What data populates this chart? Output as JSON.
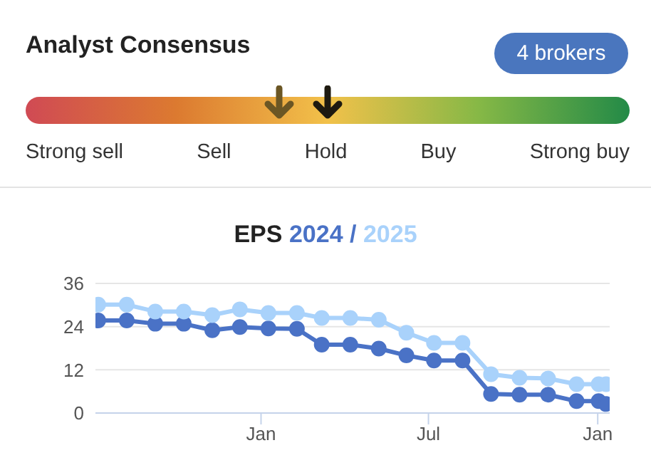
{
  "chart_data": [
    {
      "type": "other",
      "title": "Analyst Consensus",
      "categories": [
        "Strong sell",
        "Sell",
        "Hold",
        "Buy",
        "Strong buy"
      ],
      "colors": [
        "#d04a54",
        "#dc7a30",
        "#f2c14a",
        "#86b846",
        "#238a47"
      ],
      "annotations": [
        "4 brokers"
      ]
    },
    {
      "type": "line",
      "title": "EPS",
      "annotations": [
        "/"
      ],
      "x": [
        "2023-07-08",
        "2023-08-08",
        "2023-09-08",
        "2023-10-09",
        "2023-11-09",
        "2023-12-09",
        "2024-01-09",
        "2024-02-09",
        "2024-03-07",
        "2024-04-07",
        "2024-05-08",
        "2024-06-07",
        "2024-07-07",
        "2024-08-07",
        "2024-09-07",
        "2024-10-08",
        "2024-11-08",
        "2024-12-09",
        "2025-01-02",
        "2025-01-10"
      ],
      "series": [
        {
          "name": "2024",
          "color": "#4a72c6",
          "values": [
            25.7,
            25.7,
            24.8,
            24.8,
            23.0,
            23.9,
            23.5,
            23.4,
            19.0,
            19.0,
            17.9,
            16.0,
            14.6,
            14.6,
            5.3,
            5.1,
            5.1,
            3.3,
            3.3,
            2.5
          ]
        },
        {
          "name": "2025",
          "color": "#a9d2fb",
          "values": [
            30.1,
            30.1,
            28.2,
            28.2,
            27.2,
            28.8,
            27.8,
            27.8,
            26.4,
            26.4,
            25.9,
            22.3,
            19.5,
            19.5,
            10.8,
            9.8,
            9.6,
            8.0,
            8.0,
            8.0
          ]
        }
      ],
      "xlim": [
        "2023-07-05",
        "2025-01-14"
      ],
      "xticks": [
        {
          "value": "2024-01-01",
          "label": "Jan"
        },
        {
          "value": "2024-07-01",
          "label": "Jul"
        },
        {
          "value": "2025-01-01",
          "label": "Jan"
        }
      ],
      "ylim": [
        0,
        36
      ],
      "yticks": [
        0,
        12,
        24,
        36
      ],
      "grid": "y",
      "marker": "circle",
      "line_style": "solid",
      "legend": "top"
    }
  ]
}
